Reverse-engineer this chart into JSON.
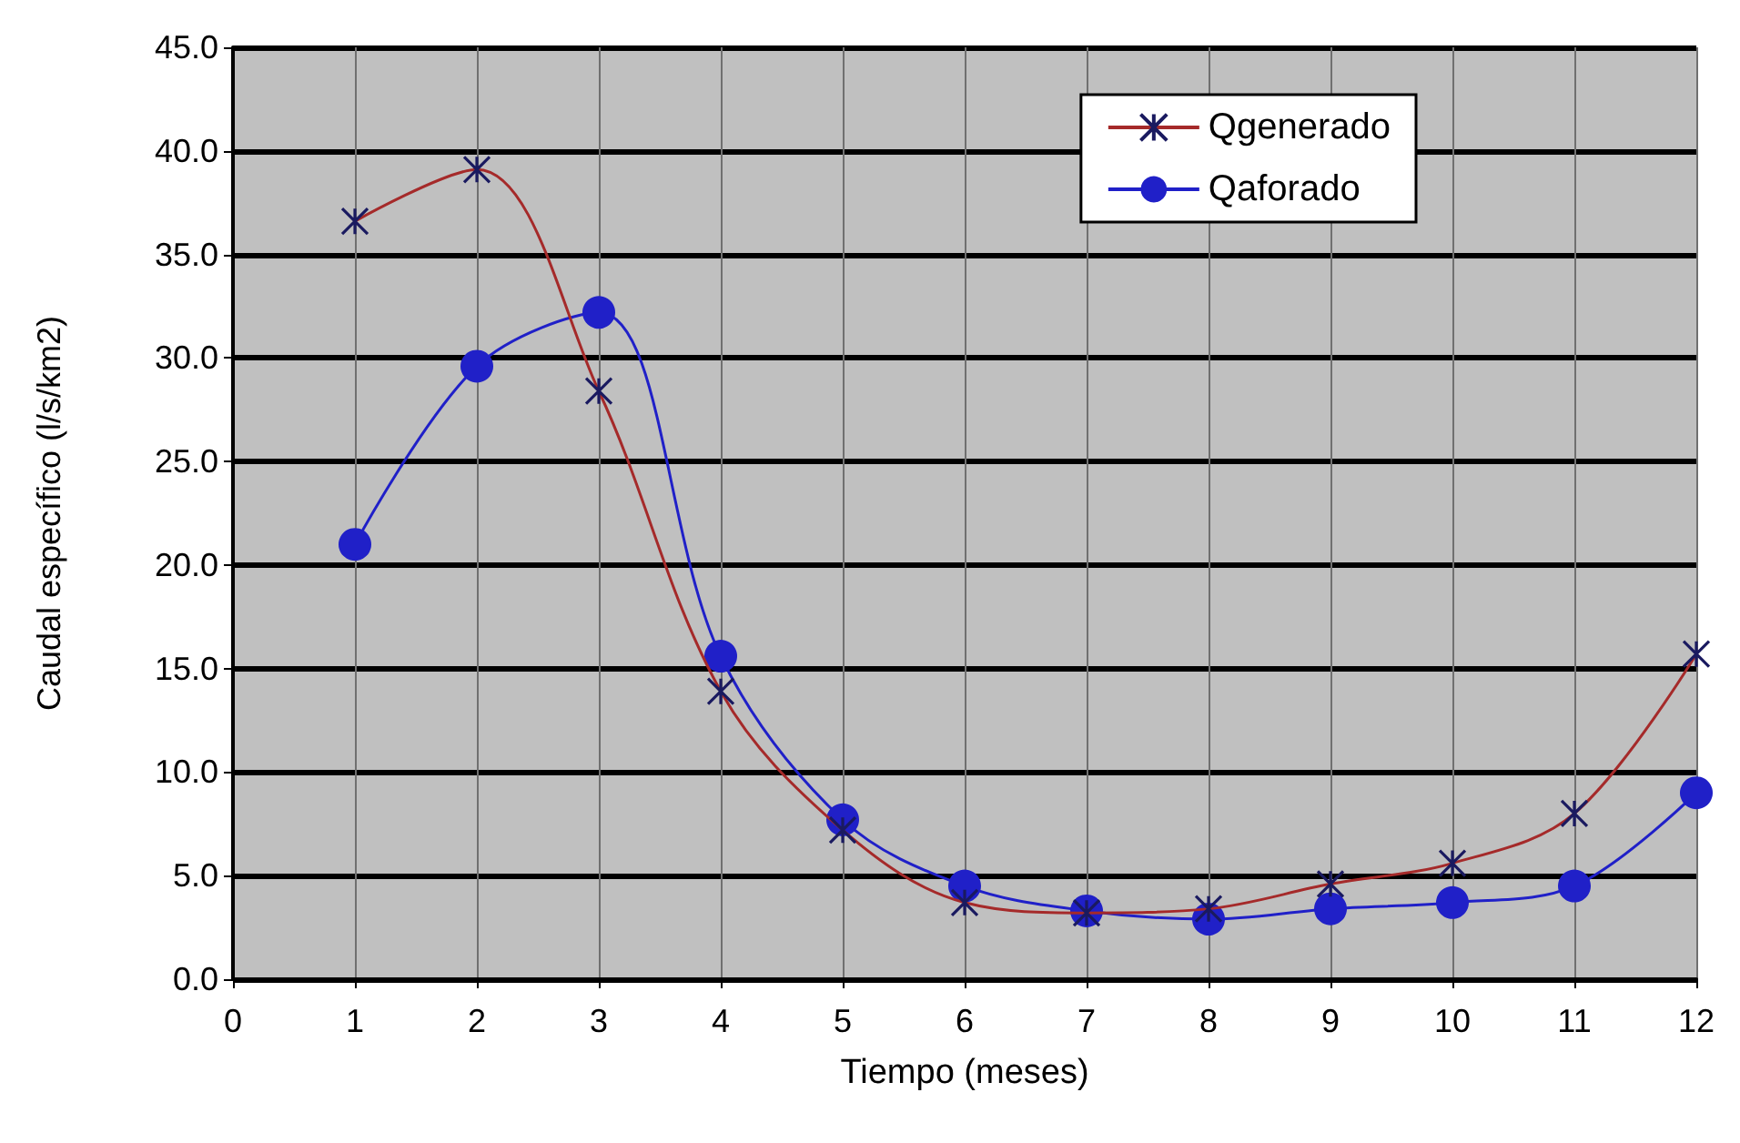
{
  "chart_data": {
    "type": "line",
    "xlabel": "Tiempo (meses)",
    "ylabel": "Caudal específico (l/s/km2)",
    "x": [
      1,
      2,
      3,
      4,
      5,
      6,
      7,
      8,
      9,
      10,
      11,
      12
    ],
    "series": [
      {
        "name": "Qgenerado",
        "color": "#a52a2a",
        "marker": "cross",
        "values": [
          36.6,
          39.1,
          28.4,
          13.9,
          7.2,
          3.7,
          3.2,
          3.4,
          4.6,
          5.6,
          8.0,
          15.7
        ]
      },
      {
        "name": "Qaforado",
        "color": "#2020c8",
        "marker": "circle",
        "values": [
          21.0,
          29.6,
          32.2,
          15.6,
          7.7,
          4.5,
          3.3,
          2.9,
          3.4,
          3.7,
          4.5,
          9.0
        ]
      }
    ],
    "xlim": [
      0,
      12
    ],
    "xticks": [
      0,
      1,
      2,
      3,
      4,
      5,
      6,
      7,
      8,
      9,
      10,
      11,
      12
    ],
    "ylim": [
      0,
      45
    ],
    "yticks": [
      {
        "value": 0,
        "label": "0.0"
      },
      {
        "value": 5,
        "label": "5.0"
      },
      {
        "value": 10,
        "label": "10.0"
      },
      {
        "value": 15,
        "label": "15.0"
      },
      {
        "value": 20,
        "label": "20.0"
      },
      {
        "value": 25,
        "label": "25.0"
      },
      {
        "value": 30,
        "label": "30.0"
      },
      {
        "value": 35,
        "label": "35.0"
      },
      {
        "value": 40,
        "label": "40.0"
      },
      {
        "value": 45,
        "label": "45.0"
      }
    ],
    "grid": true,
    "legend": "top right"
  }
}
